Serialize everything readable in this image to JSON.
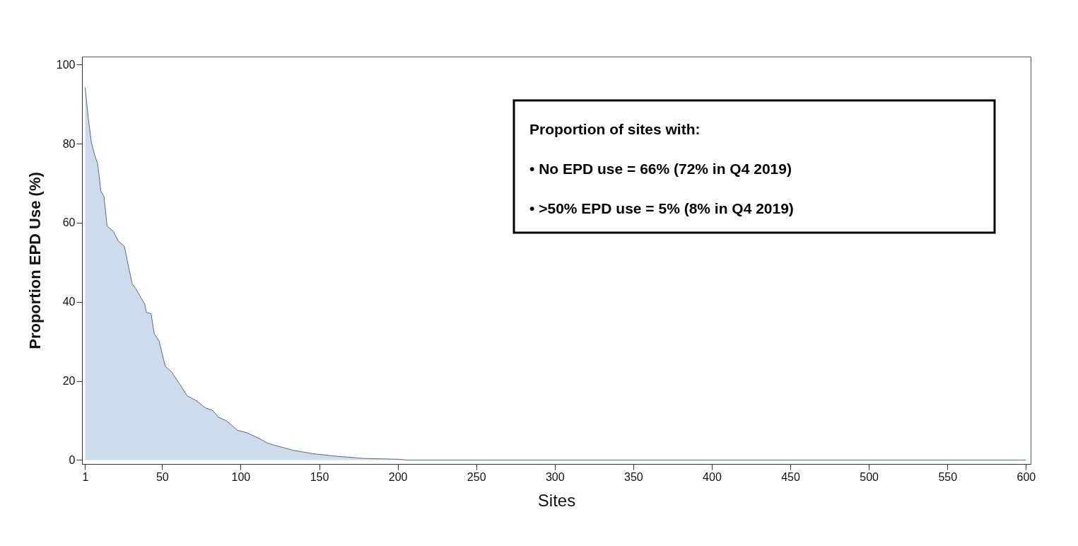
{
  "chart_data": {
    "type": "area",
    "xlabel": "Sites",
    "ylabel": "Proportion EPD Use (%)",
    "x": [
      1,
      3,
      5,
      7,
      9,
      11,
      13,
      15,
      19,
      22,
      26,
      29,
      31,
      33,
      36,
      39,
      40,
      43,
      45,
      48,
      52,
      56,
      61,
      66,
      71,
      78,
      82,
      86,
      91,
      98,
      104,
      112,
      117,
      122,
      133,
      146,
      160,
      178,
      200,
      206,
      600
    ],
    "series": [
      {
        "color": "#b8cce4",
        "values": [
          94.2,
          86.4,
          80.2,
          77.2,
          74.8,
          68,
          66.6,
          59.1,
          57.8,
          55.4,
          54,
          48.2,
          44.5,
          43.5,
          41.4,
          39.4,
          37.3,
          37,
          31.9,
          30.2,
          23.7,
          22.3,
          19.3,
          16.2,
          15.2,
          13.1,
          12.6,
          10.8,
          9.9,
          7.5,
          6.9,
          5.4,
          4.3,
          3.7,
          2.5,
          1.6,
          1.0,
          0.4,
          0.2,
          0,
          0
        ]
      }
    ],
    "xlim": [
      -1,
      603
    ],
    "ylim": [
      -1,
      102
    ],
    "xticks": [
      1,
      50,
      100,
      150,
      200,
      250,
      300,
      350,
      400,
      450,
      500,
      550,
      600
    ],
    "yticks": [
      0,
      20,
      40,
      60,
      80,
      100
    ],
    "grid": false,
    "annotations": [
      "Proportion of sites with:",
      "•  No EPD use = 66% (72% in Q4 2019)",
      "•  >50% EPD use =  5% (8% in Q4 2019)"
    ]
  }
}
